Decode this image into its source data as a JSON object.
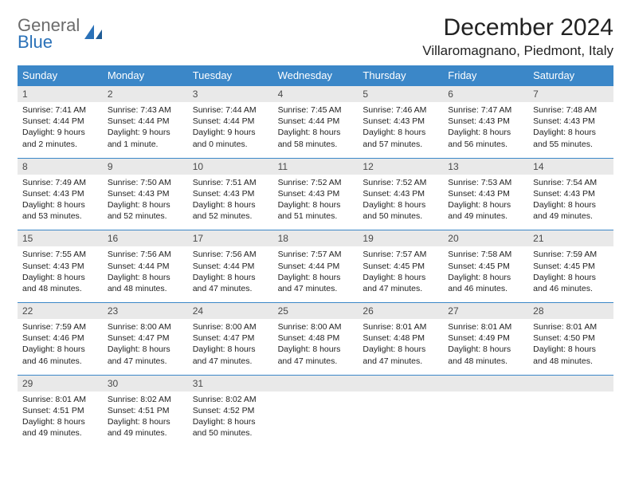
{
  "logo": {
    "line1": "General",
    "line2": "Blue"
  },
  "colors": {
    "header_bg": "#3b87c8",
    "daynum_bg": "#e9e9e9",
    "text": "#222222",
    "logo_gray": "#6b6b6b",
    "logo_blue": "#2a71b8",
    "divider": "#3b87c8"
  },
  "title": "December 2024",
  "location": "Villaromagnano, Piedmont, Italy",
  "weekdays": [
    "Sunday",
    "Monday",
    "Tuesday",
    "Wednesday",
    "Thursday",
    "Friday",
    "Saturday"
  ],
  "weeks": [
    [
      {
        "n": "1",
        "sr": "Sunrise: 7:41 AM",
        "ss": "Sunset: 4:44 PM",
        "dl1": "Daylight: 9 hours",
        "dl2": "and 2 minutes."
      },
      {
        "n": "2",
        "sr": "Sunrise: 7:43 AM",
        "ss": "Sunset: 4:44 PM",
        "dl1": "Daylight: 9 hours",
        "dl2": "and 1 minute."
      },
      {
        "n": "3",
        "sr": "Sunrise: 7:44 AM",
        "ss": "Sunset: 4:44 PM",
        "dl1": "Daylight: 9 hours",
        "dl2": "and 0 minutes."
      },
      {
        "n": "4",
        "sr": "Sunrise: 7:45 AM",
        "ss": "Sunset: 4:44 PM",
        "dl1": "Daylight: 8 hours",
        "dl2": "and 58 minutes."
      },
      {
        "n": "5",
        "sr": "Sunrise: 7:46 AM",
        "ss": "Sunset: 4:43 PM",
        "dl1": "Daylight: 8 hours",
        "dl2": "and 57 minutes."
      },
      {
        "n": "6",
        "sr": "Sunrise: 7:47 AM",
        "ss": "Sunset: 4:43 PM",
        "dl1": "Daylight: 8 hours",
        "dl2": "and 56 minutes."
      },
      {
        "n": "7",
        "sr": "Sunrise: 7:48 AM",
        "ss": "Sunset: 4:43 PM",
        "dl1": "Daylight: 8 hours",
        "dl2": "and 55 minutes."
      }
    ],
    [
      {
        "n": "8",
        "sr": "Sunrise: 7:49 AM",
        "ss": "Sunset: 4:43 PM",
        "dl1": "Daylight: 8 hours",
        "dl2": "and 53 minutes."
      },
      {
        "n": "9",
        "sr": "Sunrise: 7:50 AM",
        "ss": "Sunset: 4:43 PM",
        "dl1": "Daylight: 8 hours",
        "dl2": "and 52 minutes."
      },
      {
        "n": "10",
        "sr": "Sunrise: 7:51 AM",
        "ss": "Sunset: 4:43 PM",
        "dl1": "Daylight: 8 hours",
        "dl2": "and 52 minutes."
      },
      {
        "n": "11",
        "sr": "Sunrise: 7:52 AM",
        "ss": "Sunset: 4:43 PM",
        "dl1": "Daylight: 8 hours",
        "dl2": "and 51 minutes."
      },
      {
        "n": "12",
        "sr": "Sunrise: 7:52 AM",
        "ss": "Sunset: 4:43 PM",
        "dl1": "Daylight: 8 hours",
        "dl2": "and 50 minutes."
      },
      {
        "n": "13",
        "sr": "Sunrise: 7:53 AM",
        "ss": "Sunset: 4:43 PM",
        "dl1": "Daylight: 8 hours",
        "dl2": "and 49 minutes."
      },
      {
        "n": "14",
        "sr": "Sunrise: 7:54 AM",
        "ss": "Sunset: 4:43 PM",
        "dl1": "Daylight: 8 hours",
        "dl2": "and 49 minutes."
      }
    ],
    [
      {
        "n": "15",
        "sr": "Sunrise: 7:55 AM",
        "ss": "Sunset: 4:43 PM",
        "dl1": "Daylight: 8 hours",
        "dl2": "and 48 minutes."
      },
      {
        "n": "16",
        "sr": "Sunrise: 7:56 AM",
        "ss": "Sunset: 4:44 PM",
        "dl1": "Daylight: 8 hours",
        "dl2": "and 48 minutes."
      },
      {
        "n": "17",
        "sr": "Sunrise: 7:56 AM",
        "ss": "Sunset: 4:44 PM",
        "dl1": "Daylight: 8 hours",
        "dl2": "and 47 minutes."
      },
      {
        "n": "18",
        "sr": "Sunrise: 7:57 AM",
        "ss": "Sunset: 4:44 PM",
        "dl1": "Daylight: 8 hours",
        "dl2": "and 47 minutes."
      },
      {
        "n": "19",
        "sr": "Sunrise: 7:57 AM",
        "ss": "Sunset: 4:45 PM",
        "dl1": "Daylight: 8 hours",
        "dl2": "and 47 minutes."
      },
      {
        "n": "20",
        "sr": "Sunrise: 7:58 AM",
        "ss": "Sunset: 4:45 PM",
        "dl1": "Daylight: 8 hours",
        "dl2": "and 46 minutes."
      },
      {
        "n": "21",
        "sr": "Sunrise: 7:59 AM",
        "ss": "Sunset: 4:45 PM",
        "dl1": "Daylight: 8 hours",
        "dl2": "and 46 minutes."
      }
    ],
    [
      {
        "n": "22",
        "sr": "Sunrise: 7:59 AM",
        "ss": "Sunset: 4:46 PM",
        "dl1": "Daylight: 8 hours",
        "dl2": "and 46 minutes."
      },
      {
        "n": "23",
        "sr": "Sunrise: 8:00 AM",
        "ss": "Sunset: 4:47 PM",
        "dl1": "Daylight: 8 hours",
        "dl2": "and 47 minutes."
      },
      {
        "n": "24",
        "sr": "Sunrise: 8:00 AM",
        "ss": "Sunset: 4:47 PM",
        "dl1": "Daylight: 8 hours",
        "dl2": "and 47 minutes."
      },
      {
        "n": "25",
        "sr": "Sunrise: 8:00 AM",
        "ss": "Sunset: 4:48 PM",
        "dl1": "Daylight: 8 hours",
        "dl2": "and 47 minutes."
      },
      {
        "n": "26",
        "sr": "Sunrise: 8:01 AM",
        "ss": "Sunset: 4:48 PM",
        "dl1": "Daylight: 8 hours",
        "dl2": "and 47 minutes."
      },
      {
        "n": "27",
        "sr": "Sunrise: 8:01 AM",
        "ss": "Sunset: 4:49 PM",
        "dl1": "Daylight: 8 hours",
        "dl2": "and 48 minutes."
      },
      {
        "n": "28",
        "sr": "Sunrise: 8:01 AM",
        "ss": "Sunset: 4:50 PM",
        "dl1": "Daylight: 8 hours",
        "dl2": "and 48 minutes."
      }
    ],
    [
      {
        "n": "29",
        "sr": "Sunrise: 8:01 AM",
        "ss": "Sunset: 4:51 PM",
        "dl1": "Daylight: 8 hours",
        "dl2": "and 49 minutes."
      },
      {
        "n": "30",
        "sr": "Sunrise: 8:02 AM",
        "ss": "Sunset: 4:51 PM",
        "dl1": "Daylight: 8 hours",
        "dl2": "and 49 minutes."
      },
      {
        "n": "31",
        "sr": "Sunrise: 8:02 AM",
        "ss": "Sunset: 4:52 PM",
        "dl1": "Daylight: 8 hours",
        "dl2": "and 50 minutes."
      },
      null,
      null,
      null,
      null
    ]
  ]
}
